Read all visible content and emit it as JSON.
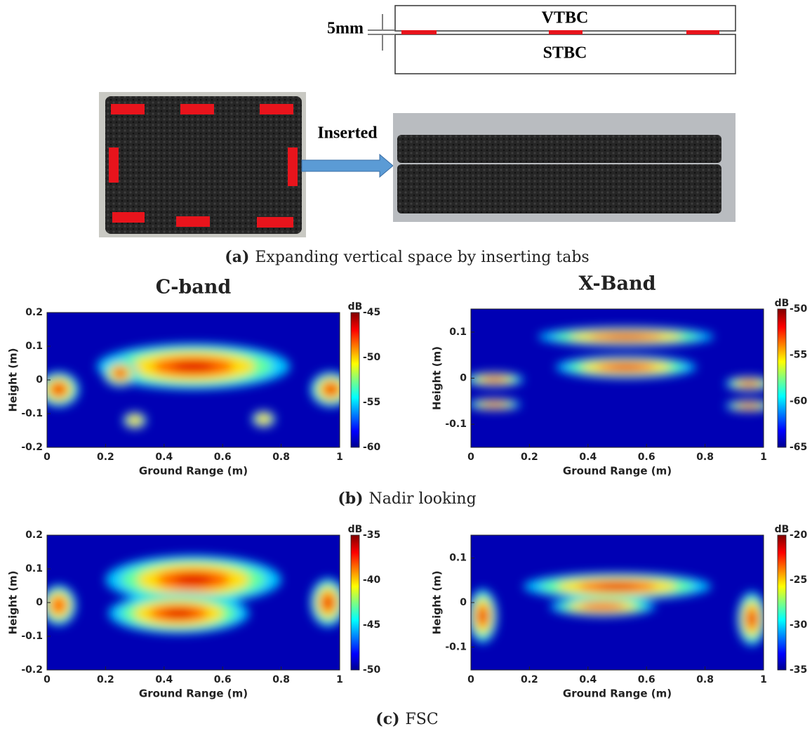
{
  "diagram": {
    "dimension": "5mm",
    "top_layer": "VTBC",
    "bottom_layer": "STBC",
    "arrow_label": "Inserted"
  },
  "captions": [
    {
      "label": "(a)",
      "text": "Expanding vertical space by inserting tabs"
    },
    {
      "label": "(b)",
      "text": "Nadir looking"
    },
    {
      "label": "(c)",
      "text": "FSC"
    }
  ],
  "panels": [
    {
      "title": "C-band",
      "ylabel": "Height (m)",
      "xlabel": "Ground Range (m)",
      "xticks": [
        "0",
        "0.2",
        "0.4",
        "0.6",
        "0.8",
        "1"
      ],
      "yticks": [
        "0.2",
        "0.1",
        "0",
        "-0.1",
        "-0.2"
      ],
      "cbar_unit": "dB",
      "cbar_ticks": [
        "-45",
        "-50",
        "-55",
        "-60"
      ]
    },
    {
      "title": "X-Band",
      "ylabel": "Height (m)",
      "xlabel": "Ground Range (m)",
      "xticks": [
        "0",
        "0.2",
        "0.4",
        "0.6",
        "0.8",
        "1"
      ],
      "yticks": [
        "0.1",
        "0",
        "-0.1"
      ],
      "cbar_unit": "dB",
      "cbar_ticks": [
        "-50",
        "-55",
        "-60",
        "-65"
      ]
    },
    {
      "ylabel": "Height (m)",
      "xlabel": "Ground Range (m)",
      "xticks": [
        "0",
        "0.2",
        "0.4",
        "0.6",
        "0.8",
        "1"
      ],
      "yticks": [
        "0.2",
        "0.1",
        "0",
        "-0.1",
        "-0.2"
      ],
      "cbar_unit": "dB",
      "cbar_ticks": [
        "-35",
        "-40",
        "-45",
        "-50"
      ]
    },
    {
      "ylabel": "Height (m)",
      "xlabel": "Ground Range (m)",
      "xticks": [
        "0",
        "0.2",
        "0.4",
        "0.6",
        "0.8",
        "1"
      ],
      "yticks": [
        "0.1",
        "0",
        "-0.1"
      ],
      "cbar_unit": "dB",
      "cbar_ticks": [
        "-20",
        "-25",
        "-30",
        "-35"
      ]
    }
  ]
}
